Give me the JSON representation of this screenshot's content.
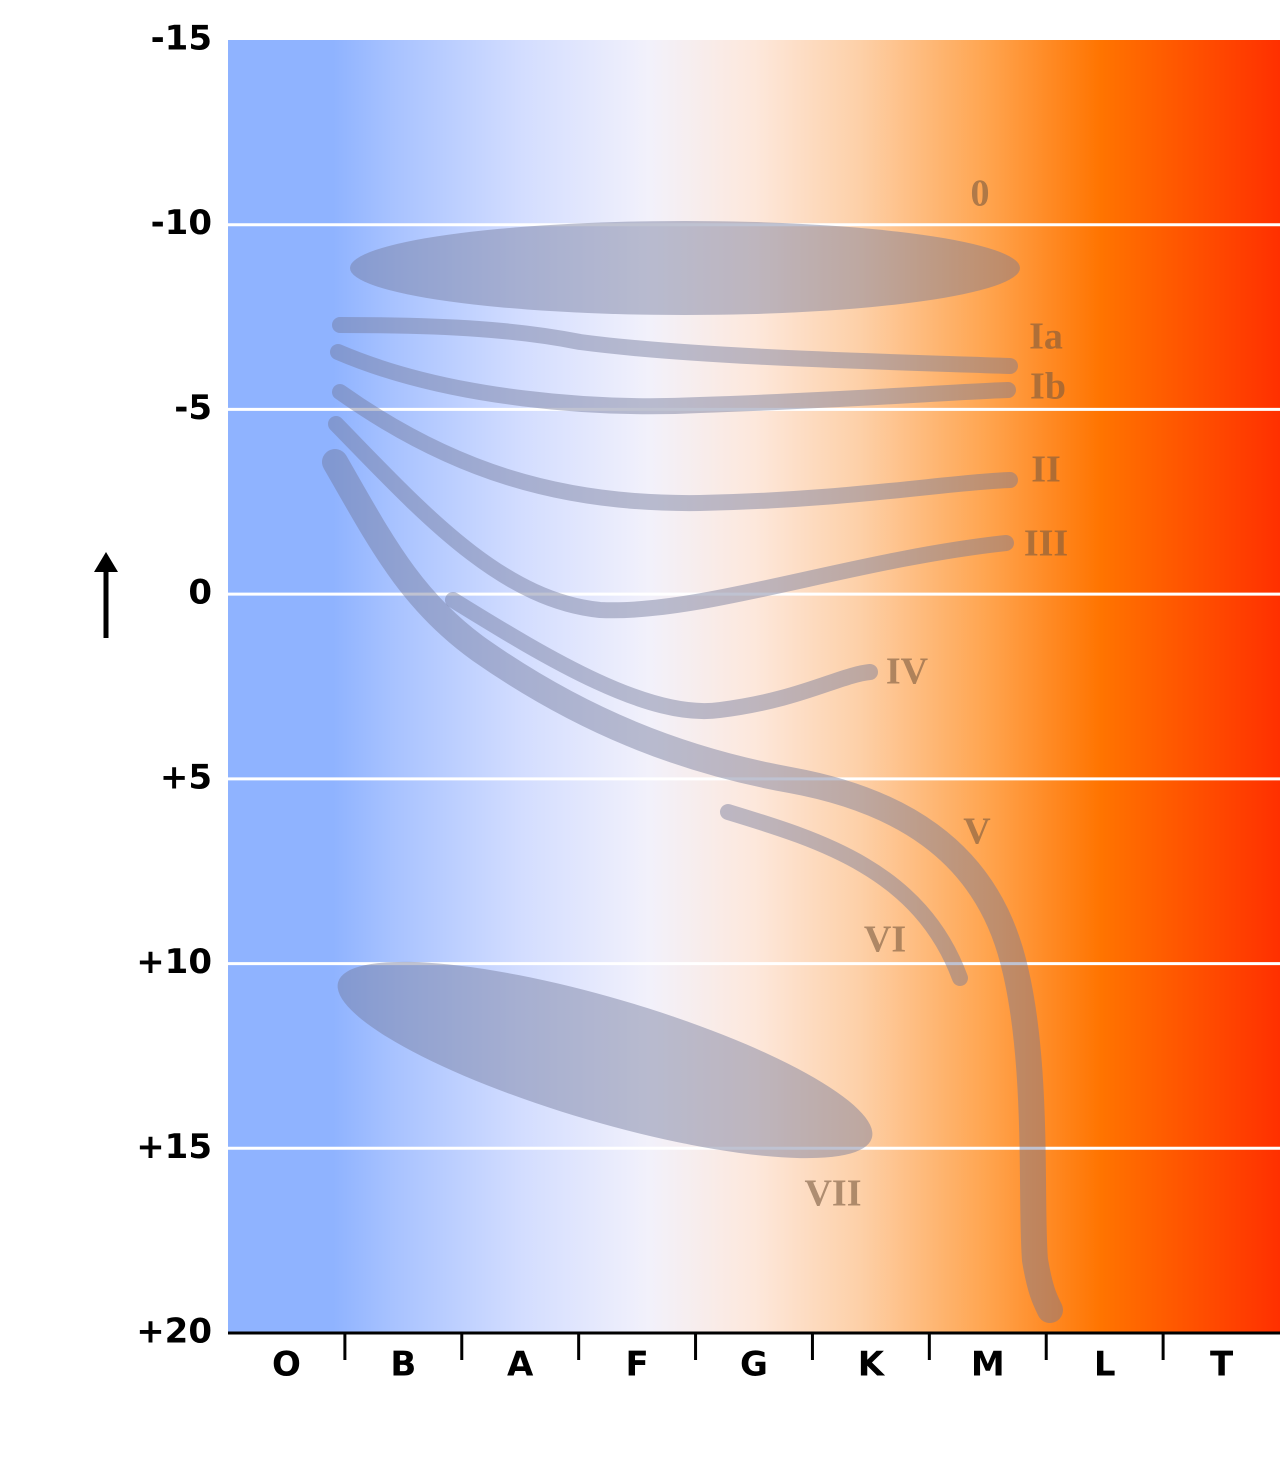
{
  "chart_data": {
    "type": "hr-diagram",
    "categories": [
      "O",
      "B",
      "A",
      "F",
      "G",
      "K",
      "M",
      "L",
      "T"
    ],
    "ylim": [
      -15,
      20
    ],
    "yticks": [
      -15,
      -10,
      -5,
      0,
      {
        "value": 5,
        "label": "+5"
      },
      {
        "value": 10,
        "label": "+10"
      },
      {
        "value": 15,
        "label": "+15"
      },
      {
        "value": 20,
        "label": "+20"
      }
    ],
    "grid": true,
    "annotations": [
      "0",
      "Ia",
      "Ib",
      "II",
      "III",
      "IV",
      "V",
      "VI",
      "VII"
    ]
  }
}
